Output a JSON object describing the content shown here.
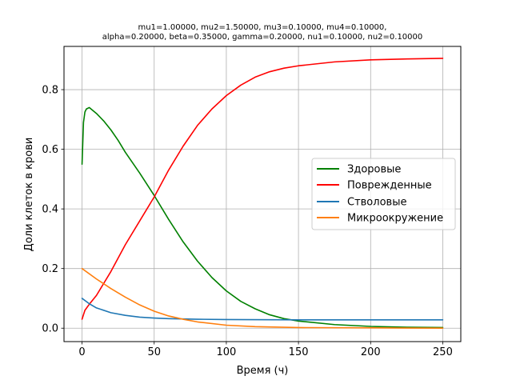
{
  "chart_data": {
    "type": "line",
    "title_lines": [
      "mu1=1.00000, mu2=1.50000, mu3=0.10000, mu4=0.10000,",
      "alpha=0.20000, beta=0.35000, gamma=0.20000, nu1=0.10000, nu2=0.10000"
    ],
    "xlabel": "Время (ч)",
    "ylabel": "Доли клеток в крови",
    "xlim": [
      -12.5,
      262.5
    ],
    "ylim": [
      -0.045,
      0.945
    ],
    "x_ticks": [
      0,
      50,
      100,
      150,
      200,
      250
    ],
    "y_ticks": [
      0.0,
      0.2,
      0.4,
      0.6,
      0.8
    ],
    "x_tick_labels": [
      "0",
      "50",
      "100",
      "150",
      "200",
      "250"
    ],
    "y_tick_labels": [
      "0.0",
      "0.2",
      "0.4",
      "0.6",
      "0.8"
    ],
    "grid": true,
    "legend_position": "center-right",
    "series": [
      {
        "name": "Здоровые",
        "color": "#008000",
        "x": [
          0,
          1,
          2,
          3,
          5,
          10,
          15,
          20,
          25,
          30,
          40,
          50,
          60,
          70,
          80,
          90,
          100,
          110,
          120,
          130,
          140,
          150,
          175,
          200,
          225,
          250
        ],
        "y": [
          0.55,
          0.69,
          0.725,
          0.735,
          0.74,
          0.72,
          0.695,
          0.665,
          0.63,
          0.59,
          0.52,
          0.445,
          0.365,
          0.29,
          0.225,
          0.17,
          0.125,
          0.09,
          0.065,
          0.045,
          0.032,
          0.024,
          0.012,
          0.006,
          0.003,
          0.002
        ]
      },
      {
        "name": "Поврежденные",
        "color": "#ff0000",
        "x": [
          0,
          2,
          5,
          10,
          20,
          30,
          40,
          50,
          60,
          70,
          80,
          90,
          100,
          110,
          120,
          130,
          140,
          150,
          175,
          200,
          225,
          250
        ],
        "y": [
          0.03,
          0.06,
          0.08,
          0.11,
          0.19,
          0.28,
          0.36,
          0.44,
          0.53,
          0.61,
          0.68,
          0.735,
          0.78,
          0.815,
          0.842,
          0.86,
          0.872,
          0.88,
          0.893,
          0.9,
          0.903,
          0.905
        ]
      },
      {
        "name": "Стволовые",
        "color": "#1f77b4",
        "x": [
          0,
          5,
          10,
          20,
          30,
          40,
          50,
          60,
          80,
          100,
          150,
          200,
          250
        ],
        "y": [
          0.1,
          0.082,
          0.068,
          0.052,
          0.043,
          0.037,
          0.034,
          0.032,
          0.03,
          0.029,
          0.028,
          0.028,
          0.028
        ]
      },
      {
        "name": "Микроокружение",
        "color": "#ff7f0e",
        "x": [
          0,
          10,
          20,
          30,
          40,
          50,
          60,
          70,
          80,
          100,
          120,
          150,
          200,
          250
        ],
        "y": [
          0.2,
          0.165,
          0.133,
          0.104,
          0.078,
          0.057,
          0.041,
          0.03,
          0.021,
          0.01,
          0.005,
          0.002,
          0.001,
          0.0
        ]
      }
    ]
  }
}
